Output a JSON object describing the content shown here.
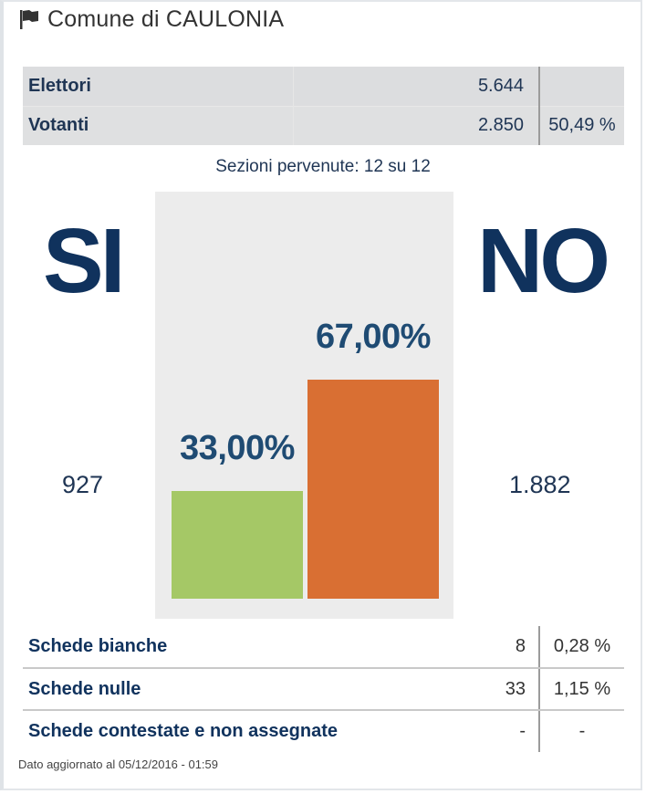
{
  "header": {
    "title": "Comune di CAULONIA",
    "icon": "flag-icon"
  },
  "summary": {
    "elettori_label": "Elettori",
    "elettori_value": "5.644",
    "votanti_label": "Votanti",
    "votanti_value": "2.850",
    "votanti_pct": "50,49 %"
  },
  "sezioni": "Sezioni pervenute: 12 su 12",
  "results": {
    "si_label": "SI",
    "no_label": "NO",
    "si_votes": "927",
    "no_votes": "1.882"
  },
  "chart_data": {
    "type": "bar",
    "title": "",
    "categories": [
      "SI",
      "NO"
    ],
    "values": [
      33.0,
      67.0
    ],
    "value_labels": [
      "33,00%",
      "67,00%"
    ],
    "colors": [
      "#a5c866",
      "#d96f33"
    ],
    "ylim": [
      0,
      100
    ],
    "grid": false,
    "legend": "none"
  },
  "details": {
    "bianche_label": "Schede bianche",
    "bianche_value": "8",
    "bianche_pct": "0,28 %",
    "nulle_label": "Schede nulle",
    "nulle_value": "33",
    "nulle_pct": "1,15 %",
    "contestate_label": "Schede contestate e non assegnate",
    "contestate_value": "-",
    "contestate_pct": "-"
  },
  "footer": "Dato aggiornato al 05/12/2016 - 01:59"
}
